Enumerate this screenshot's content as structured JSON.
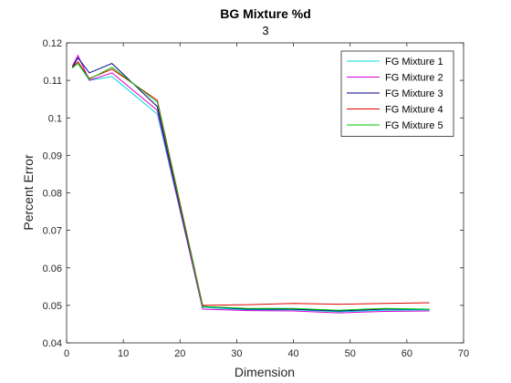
{
  "chart_data": {
    "type": "line",
    "title": "BG Mixture %d",
    "subtitle": "3",
    "xlabel": "Dimension",
    "ylabel": "Percent Error",
    "xlim": [
      0,
      70
    ],
    "ylim": [
      0.04,
      0.12
    ],
    "xticks": [
      "0",
      "10",
      "20",
      "30",
      "40",
      "50",
      "60",
      "70"
    ],
    "yticks": [
      "0.04",
      "0.05",
      "0.06",
      "0.07",
      "0.08",
      "0.09",
      "0.1",
      "0.11",
      "0.12"
    ],
    "grid": false,
    "legend_position": "top-right",
    "x": [
      1,
      2,
      4,
      8,
      16,
      24,
      32,
      40,
      48,
      56,
      64
    ],
    "series": [
      {
        "name": "FG Mixture 1",
        "color": "#00d8d8",
        "values": [
          0.1135,
          0.1145,
          0.11,
          0.111,
          0.101,
          0.0495,
          0.0488,
          0.0488,
          0.0483,
          0.0487,
          0.0488
        ]
      },
      {
        "name": "FG Mixture 2",
        "color": "#d400d4",
        "values": [
          0.1137,
          0.1167,
          0.11,
          0.112,
          0.102,
          0.049,
          0.0486,
          0.0485,
          0.048,
          0.0484,
          0.0485
        ]
      },
      {
        "name": "FG Mixture 3",
        "color": "#000080",
        "values": [
          0.1135,
          0.116,
          0.112,
          0.1145,
          0.103,
          0.0497,
          0.049,
          0.049,
          0.0485,
          0.049,
          0.049
        ]
      },
      {
        "name": "FG Mixture 4",
        "color": "#e00000",
        "values": [
          0.1135,
          0.115,
          0.1105,
          0.113,
          0.1047,
          0.05,
          0.0502,
          0.0505,
          0.0503,
          0.0505,
          0.0507
        ]
      },
      {
        "name": "FG Mixture 5",
        "color": "#00c800",
        "values": [
          0.1133,
          0.1145,
          0.1103,
          0.1135,
          0.1042,
          0.0497,
          0.0492,
          0.0492,
          0.0487,
          0.0492,
          0.049
        ]
      }
    ]
  }
}
